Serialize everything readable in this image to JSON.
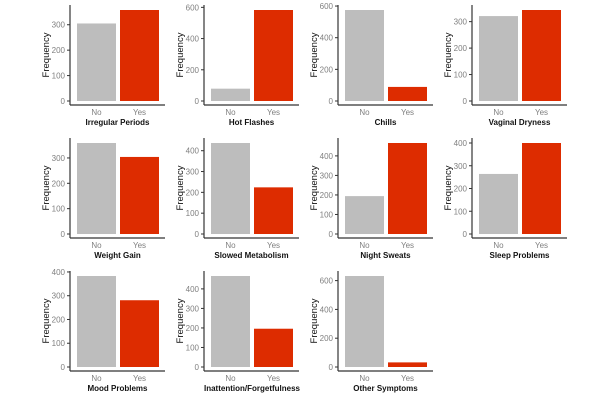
{
  "chart_data": [
    {
      "type": "bar",
      "title": "Irregular Periods",
      "ylabel": "Frequency",
      "categories": [
        "No",
        "Yes"
      ],
      "values": [
        305,
        358
      ],
      "yticks": [
        0,
        100,
        200,
        300
      ],
      "grid": false
    },
    {
      "type": "bar",
      "title": "Hot Flashes",
      "ylabel": "Frequency",
      "categories": [
        "No",
        "Yes"
      ],
      "values": [
        79,
        583
      ],
      "yticks": [
        0,
        200,
        400,
        600
      ],
      "grid": false
    },
    {
      "type": "bar",
      "title": "Chills",
      "ylabel": "Frequency",
      "categories": [
        "No",
        "Yes"
      ],
      "values": [
        575,
        89
      ],
      "yticks": [
        0,
        200,
        400,
        600
      ],
      "grid": false
    },
    {
      "type": "bar",
      "title": "Vaginal Dryness",
      "ylabel": "Frequency",
      "categories": [
        "No",
        "Yes"
      ],
      "values": [
        321,
        344
      ],
      "yticks": [
        0,
        100,
        200,
        300
      ],
      "grid": false
    },
    {
      "type": "bar",
      "title": "Weight Gain",
      "ylabel": "Frequency",
      "categories": [
        "No",
        "Yes"
      ],
      "values": [
        359,
        304
      ],
      "yticks": [
        0,
        100,
        200,
        300
      ],
      "grid": false
    },
    {
      "type": "bar",
      "title": "Slowed Metabolism",
      "ylabel": "Frequency",
      "categories": [
        "No",
        "Yes"
      ],
      "values": [
        437,
        224
      ],
      "yticks": [
        0,
        100,
        200,
        300,
        400
      ],
      "grid": false
    },
    {
      "type": "bar",
      "title": "Night Sweats",
      "ylabel": "Frequency",
      "categories": [
        "No",
        "Yes"
      ],
      "values": [
        194,
        466
      ],
      "yticks": [
        0,
        100,
        200,
        300,
        400
      ],
      "grid": false
    },
    {
      "type": "bar",
      "title": "Sleep Problems",
      "ylabel": "Frequency",
      "categories": [
        "No",
        "Yes"
      ],
      "values": [
        264,
        400
      ],
      "yticks": [
        0,
        100,
        200,
        300,
        400
      ],
      "grid": false
    },
    {
      "type": "bar",
      "title": "Mood Problems",
      "ylabel": "Frequency",
      "categories": [
        "No",
        "Yes"
      ],
      "values": [
        383,
        281
      ],
      "yticks": [
        0,
        100,
        200,
        300,
        400
      ],
      "grid": false
    },
    {
      "type": "bar",
      "title": "Inattention/Forgetfulness",
      "ylabel": "Frequency",
      "categories": [
        "No",
        "Yes"
      ],
      "values": [
        466,
        196
      ],
      "yticks": [
        0,
        100,
        200,
        300,
        400
      ],
      "grid": false
    },
    {
      "type": "bar",
      "title": "Other Symptoms",
      "ylabel": "Frequency",
      "categories": [
        "No",
        "Yes"
      ],
      "values": [
        632,
        32
      ],
      "yticks": [
        0,
        200,
        400,
        600
      ],
      "grid": false
    }
  ],
  "colors": {
    "No": "#bdbdbd",
    "Yes": "#dd2c00",
    "axis": "#333333",
    "tick_label": "#7f7f7f"
  }
}
